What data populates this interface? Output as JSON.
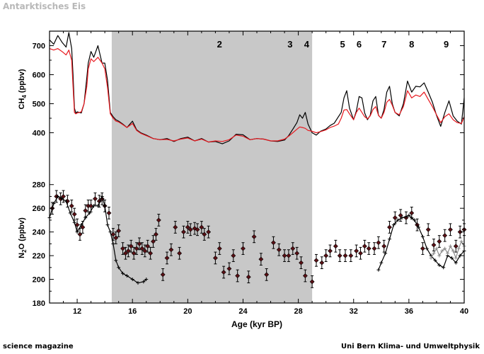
{
  "header": {
    "title": "Antarktisches Eis"
  },
  "footer": {
    "left": "science magazine",
    "right": "Uni Bern Klima- und Umweltphysik"
  },
  "chart_data": {
    "type": "line",
    "xlabel": "Age (kyr BP)",
    "xlim": [
      10,
      40
    ],
    "x_ticks": [
      12,
      16,
      20,
      24,
      28,
      32,
      36,
      40
    ],
    "shaded_interval": [
      14.5,
      29.0
    ],
    "event_labels": [
      {
        "label": "2",
        "x": 22.3
      },
      {
        "label": "3",
        "x": 27.4
      },
      {
        "label": "4",
        "x": 28.6
      },
      {
        "label": "5",
        "x": 31.2
      },
      {
        "label": "6",
        "x": 32.4
      },
      {
        "label": "7",
        "x": 34.2
      },
      {
        "label": "8",
        "x": 36.2
      },
      {
        "label": "9",
        "x": 38.7
      }
    ],
    "panels": [
      {
        "id": "ch4",
        "ylabel": "CH4 (ppbv)",
        "ylabel_main": "CH",
        "ylabel_sub": "4",
        "ylabel_rest": " (ppbv)",
        "ylim": [
          350,
          750
        ],
        "y_ticks": [
          400,
          500,
          600,
          700
        ],
        "series": [
          {
            "color": "#000000",
            "x": [
              10,
              10.3,
              10.6,
              10.9,
              11.2,
              11.4,
              11.6,
              11.7,
              11.8,
              11.9,
              12.0,
              12.3,
              12.5,
              12.7,
              12.8,
              13.0,
              13.2,
              13.5,
              13.8,
              14.0,
              14.2,
              14.4,
              14.6,
              14.8,
              15.0,
              15.3,
              15.6,
              16.0,
              16.3,
              16.6,
              17.0,
              17.5,
              18.0,
              18.5,
              19.0,
              19.5,
              20.0,
              20.5,
              21.0,
              21.5,
              22.0,
              22.5,
              23.0,
              23.5,
              24.0,
              24.5,
              25.0,
              25.5,
              26.0,
              26.5,
              27.0,
              27.3,
              27.6,
              27.9,
              28.1,
              28.3,
              28.5,
              28.7,
              29.0,
              29.3,
              29.6,
              30.0,
              30.3,
              30.6,
              30.9,
              31.1,
              31.3,
              31.5,
              31.7,
              32.0,
              32.2,
              32.4,
              32.6,
              32.8,
              33.0,
              33.2,
              33.4,
              33.6,
              33.8,
              34.0,
              34.2,
              34.4,
              34.6,
              34.8,
              35.0,
              35.3,
              35.6,
              35.9,
              36.2,
              36.5,
              36.8,
              37.1,
              37.4,
              37.7,
              38.0,
              38.3,
              38.6,
              38.9,
              39.2,
              39.5,
              39.8,
              40.0
            ],
            "y": [
              720,
              705,
              735,
              712,
              695,
              745,
              690,
              600,
              485,
              468,
              472,
              468,
              500,
              590,
              640,
              680,
              660,
              700,
              640,
              640,
              580,
              470,
              455,
              445,
              440,
              430,
              418,
              440,
              410,
              400,
              392,
              380,
              376,
              380,
              370,
              380,
              385,
              372,
              380,
              368,
              370,
              362,
              372,
              395,
              393,
              376,
              380,
              378,
              372,
              370,
              375,
              390,
              412,
              435,
              462,
              450,
              470,
              430,
              400,
              392,
              405,
              413,
              425,
              433,
              455,
              470,
              520,
              545,
              485,
              445,
              475,
              525,
              520,
              468,
              445,
              460,
              510,
              525,
              460,
              450,
              480,
              540,
              560,
              500,
              470,
              458,
              500,
              578,
              540,
              560,
              558,
              572,
              540,
              505,
              460,
              422,
              470,
              510,
              458,
              440,
              430,
              520
            ]
          },
          {
            "color": "#e8191f",
            "x": [
              10,
              10.3,
              10.6,
              10.9,
              11.2,
              11.4,
              11.6,
              11.7,
              11.8,
              11.9,
              12.0,
              12.3,
              12.5,
              12.7,
              12.8,
              13.0,
              13.2,
              13.5,
              13.8,
              14.0,
              14.2,
              14.4,
              14.6,
              14.8,
              15.0,
              15.3,
              15.6,
              16.0,
              16.3,
              16.6,
              17.0,
              17.5,
              18.0,
              18.5,
              19.0,
              19.5,
              20.0,
              20.5,
              21.0,
              21.5,
              22.0,
              22.5,
              23.0,
              23.5,
              24.0,
              24.5,
              25.0,
              25.5,
              26.0,
              26.5,
              27.0,
              27.3,
              27.6,
              27.9,
              28.1,
              28.3,
              28.5,
              28.7,
              29.0,
              29.3,
              29.6,
              30.0,
              30.3,
              30.6,
              30.9,
              31.1,
              31.3,
              31.5,
              31.7,
              32.0,
              32.2,
              32.4,
              32.6,
              32.8,
              33.0,
              33.2,
              33.4,
              33.6,
              33.8,
              34.0,
              34.2,
              34.4,
              34.6,
              34.8,
              35.0,
              35.3,
              35.6,
              35.9,
              36.2,
              36.5,
              36.8,
              37.1,
              37.4,
              37.7,
              38.0,
              38.3,
              38.6,
              38.9,
              39.2,
              39.5,
              39.8,
              40.0
            ],
            "y": [
              690,
              685,
              690,
              680,
              668,
              685,
              650,
              560,
              470,
              465,
              468,
              472,
              500,
              560,
              620,
              655,
              645,
              660,
              640,
              620,
              555,
              465,
              450,
              440,
              437,
              428,
              418,
              432,
              408,
              398,
              390,
              380,
              376,
              377,
              372,
              378,
              382,
              372,
              378,
              368,
              372,
              370,
              376,
              392,
              388,
              376,
              380,
              378,
              372,
              372,
              378,
              388,
              400,
              412,
              420,
              418,
              415,
              408,
              405,
              400,
              404,
              410,
              418,
              423,
              430,
              450,
              478,
              480,
              465,
              445,
              470,
              485,
              470,
              455,
              448,
              458,
              480,
              490,
              460,
              450,
              470,
              505,
              515,
              495,
              470,
              462,
              490,
              545,
              520,
              530,
              525,
              540,
              515,
              490,
              462,
              435,
              455,
              465,
              445,
              435,
              432,
              455
            ]
          }
        ]
      },
      {
        "id": "n2o",
        "ylabel": "N2O (ppbv)",
        "ylabel_main": "N",
        "ylabel_sub": "2",
        "ylabel_rest": "O (ppbv)",
        "ylim": [
          180,
          290
        ],
        "y_ticks": [
          180,
          200,
          220,
          240,
          260,
          280
        ],
        "series": [
          {
            "style": "points_with_errors",
            "color": "#5a0f14",
            "error": 5,
            "x": [
              10.2,
              10.5,
              10.8,
              11.0,
              11.3,
              11.6,
              11.8,
              12.0,
              12.2,
              12.4,
              12.6,
              12.8,
              13.0,
              13.3,
              13.6,
              13.8,
              14.0,
              14.3,
              14.6,
              14.8,
              15.0,
              15.3,
              15.5,
              15.7,
              15.9,
              16.1,
              16.3,
              16.5,
              16.7,
              16.9,
              17.1,
              17.3,
              17.5,
              17.7,
              17.9,
              18.2,
              18.5,
              18.8,
              19.1,
              19.4,
              19.7,
              20.0,
              20.2,
              20.5,
              20.7,
              21.0,
              21.2,
              21.5,
              22.0,
              22.3,
              22.6,
              23.0,
              23.3,
              23.6,
              24.0,
              24.4,
              24.8,
              25.3,
              25.7,
              26.2,
              26.6,
              27.0,
              27.3,
              27.6,
              27.9,
              28.2,
              28.5,
              29.0,
              29.3,
              29.7,
              30.0,
              30.3,
              30.7,
              31.0,
              31.4,
              31.8,
              32.2,
              32.5,
              32.8,
              33.1,
              33.5,
              33.8,
              34.2,
              34.6,
              35.0,
              35.4,
              35.8,
              36.2,
              36.6,
              37.0,
              37.4,
              37.8,
              38.2,
              38.6,
              39.0,
              39.4,
              39.7,
              40.0
            ],
            "y": [
              260,
              270,
              268,
              270,
              266,
              262,
              255,
              246,
              238,
              244,
              258,
              262,
              262,
              268,
              266,
              268,
              262,
              256,
              238,
              235,
              241,
              226,
              222,
              224,
              228,
              222,
              226,
              230,
              226,
              224,
              228,
              222,
              232,
              238,
              250,
              204,
              218,
              225,
              244,
              222,
              240,
              244,
              242,
              243,
              242,
              244,
              238,
              240,
              218,
              226,
              206,
              209,
              220,
              203,
              226,
              202,
              236,
              217,
              204,
              231,
              225,
              220,
              220,
              226,
              222,
              214,
              203,
              198,
              216,
              214,
              220,
              224,
              228,
              220,
              220,
              220,
              224,
              222,
              228,
              226,
              226,
              231,
              228,
              244,
              252,
              254,
              252,
              256,
              246,
              226,
              242,
              229,
              232,
              237,
              242,
              228,
              240,
              242
            ]
          },
          {
            "style": "line_with_crosses",
            "color": "#000000",
            "x": [
              10.0,
              10.3,
              10.6,
              10.9,
              11.2,
              11.5,
              11.8,
              12.0,
              12.3,
              12.6,
              12.9,
              13.2,
              13.5,
              13.8,
              14.0,
              14.2,
              14.4,
              14.6,
              14.8,
              15.0,
              15.3,
              15.6,
              16.0,
              16.4,
              16.8,
              17.0
            ],
            "y": [
              252,
              264,
              270,
              268,
              266,
              256,
              248,
              240,
              246,
              252,
              256,
              262,
              262,
              270,
              262,
              246,
              240,
              230,
              216,
              210,
              205,
              203,
              200,
              197,
              198,
              200
            ]
          },
          {
            "style": "line_with_crosses",
            "color": "#000000",
            "x": [
              33.8,
              34.0,
              34.3,
              34.6,
              34.9,
              35.2,
              35.5,
              35.8,
              36.0,
              36.2,
              36.4,
              36.7,
              37.0,
              37.3,
              37.6,
              37.9,
              38.2,
              38.5,
              38.8,
              39.1,
              39.4,
              39.7,
              40.0
            ],
            "y": [
              208,
              214,
              222,
              234,
              246,
              250,
              252,
              253,
              254,
              252,
              250,
              244,
              236,
              226,
              220,
              216,
              212,
              210,
              220,
              218,
              214,
              220,
              224
            ]
          },
          {
            "style": "line_with_crosses",
            "color": "#8c8c8c",
            "x": [
              37.6,
              37.8,
              38.0,
              38.2,
              38.4,
              38.6,
              38.8,
              39.0,
              39.2,
              39.4,
              39.6,
              39.8,
              40.0
            ],
            "y": [
              218,
              222,
              226,
              220,
              224,
              226,
              222,
              228,
              224,
              218,
              226,
              232,
              228
            ]
          }
        ]
      }
    ]
  }
}
